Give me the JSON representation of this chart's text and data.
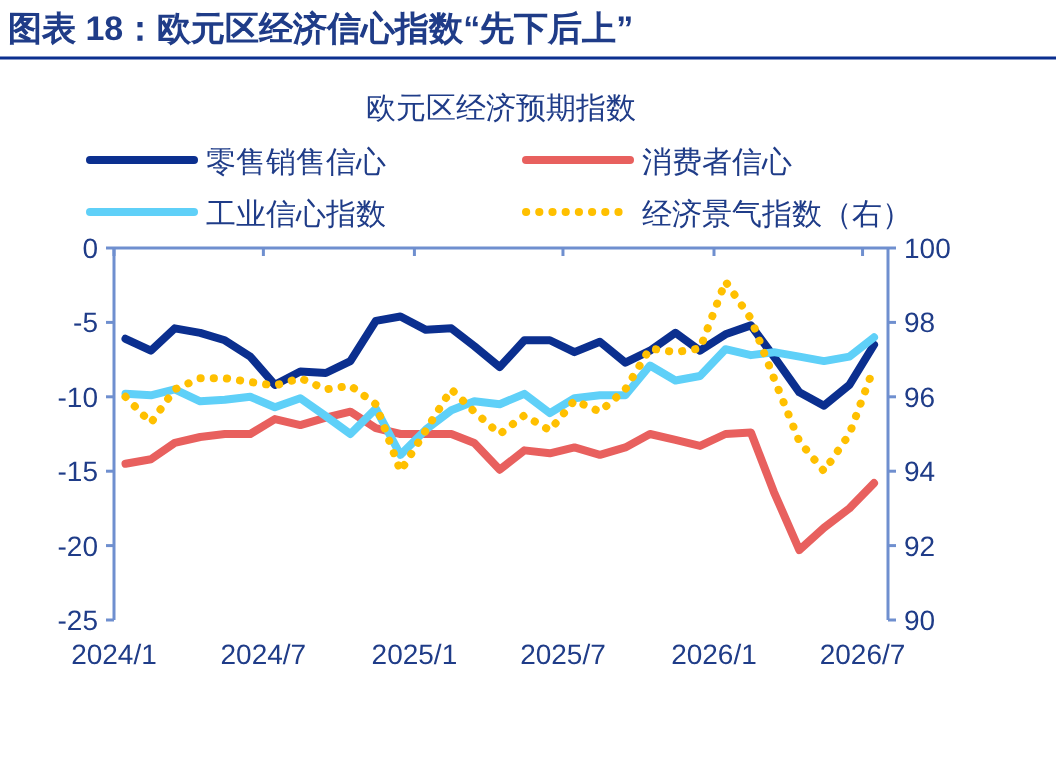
{
  "chart_data": {
    "type": "line",
    "title": "图表 18：欧元区经济信心指数“先下后上”",
    "subtitle": "欧元区经济预期指数",
    "x": [
      "2024-01-15",
      "2024-02-15",
      "2024-03-15",
      "2024-04-15",
      "2024-05-15",
      "2024-06-15",
      "2024-07-15",
      "2024-08-15",
      "2024-09-15",
      "2024-10-15",
      "2024-11-15",
      "2024-12-15",
      "2025-01-15",
      "2025-02-15",
      "2025-03-15",
      "2025-04-15",
      "2025-05-15",
      "2025-06-15",
      "2025-07-15",
      "2025-08-15",
      "2025-09-15",
      "2025-10-15",
      "2025-11-15",
      "2025-12-15",
      "2026-01-15",
      "2026-02-15",
      "2026-03-15",
      "2026-04-15",
      "2026-05-15",
      "2026-06-15",
      "2026-07-15"
    ],
    "series": [
      {
        "name": "零售销售信心",
        "color": "#0b2f8f",
        "values": [
          -6.1,
          -6.9,
          -5.4,
          -5.7,
          -6.2,
          -7.3,
          -9.2,
          -8.3,
          -8.4,
          -7.6,
          -4.9,
          -4.6,
          -5.5,
          -5.4,
          -6.6,
          -8.0,
          -6.2,
          -6.2,
          -7.0,
          -6.3,
          -7.7,
          -6.9,
          -5.7,
          -6.9,
          -5.8,
          -5.2,
          -7.3,
          -9.7,
          -10.6,
          -9.2,
          -6.5
        ]
      },
      {
        "name": "消费者信心",
        "color": "#e8605e",
        "values": [
          -14.5,
          -14.2,
          -13.1,
          -12.7,
          -12.5,
          -12.5,
          -11.5,
          -11.9,
          -11.4,
          -11.0,
          -12.1,
          -12.5,
          -12.5,
          -12.5,
          -13.1,
          -14.9,
          -13.6,
          -13.8,
          -13.4,
          -13.9,
          -13.4,
          -12.5,
          -12.9,
          -13.3,
          -12.5,
          -12.4,
          -16.4,
          -20.3,
          -18.8,
          -17.5,
          -15.8
        ]
      },
      {
        "name": "工业信心指数",
        "color": "#5fd0f8",
        "values": [
          -9.8,
          -9.9,
          -9.5,
          -10.3,
          -10.2,
          -10.0,
          -10.7,
          -10.1,
          -11.3,
          -12.5,
          -10.8,
          -13.9,
          -12.2,
          -10.9,
          -10.3,
          -10.5,
          -9.8,
          -11.1,
          -10.1,
          -9.9,
          -9.9,
          -7.9,
          -8.9,
          -8.6,
          -6.8,
          -7.2,
          -7.0,
          -7.3,
          -7.6,
          -7.3,
          -6.0
        ]
      },
      {
        "name": "经济景气指数（右）",
        "color": "#ffc000",
        "axis": "y2",
        "line_style": "dotted",
        "values": [
          96.0,
          95.3,
          96.2,
          96.5,
          96.5,
          96.4,
          96.3,
          96.5,
          96.2,
          96.3,
          95.8,
          94.0,
          95.1,
          96.2,
          95.6,
          95.0,
          95.5,
          95.1,
          95.9,
          95.6,
          96.2,
          97.3,
          97.2,
          97.3,
          99.1,
          98.1,
          96.5,
          94.8,
          94.0,
          95.0,
          96.8
        ]
      }
    ],
    "xlim": [
      "2024-01-01",
      "2026-08-01"
    ],
    "xticks": [
      {
        "value": "2024-01-01",
        "label": "2024/1"
      },
      {
        "value": "2024-07-01",
        "label": "2024/7"
      },
      {
        "value": "2025-01-01",
        "label": "2025/1"
      },
      {
        "value": "2025-07-01",
        "label": "2025/7"
      },
      {
        "value": "2026-01-01",
        "label": "2026/1"
      },
      {
        "value": "2026-07-01",
        "label": "2026/7"
      }
    ],
    "ylim": [
      -25,
      0
    ],
    "yticks": [
      0,
      -5,
      -10,
      -15,
      -20,
      -25
    ],
    "y2lim": [
      90,
      100
    ],
    "y2ticks": [
      90,
      92,
      94,
      96,
      98,
      100
    ],
    "legend": "top",
    "grid": false,
    "line_style": "solid"
  }
}
